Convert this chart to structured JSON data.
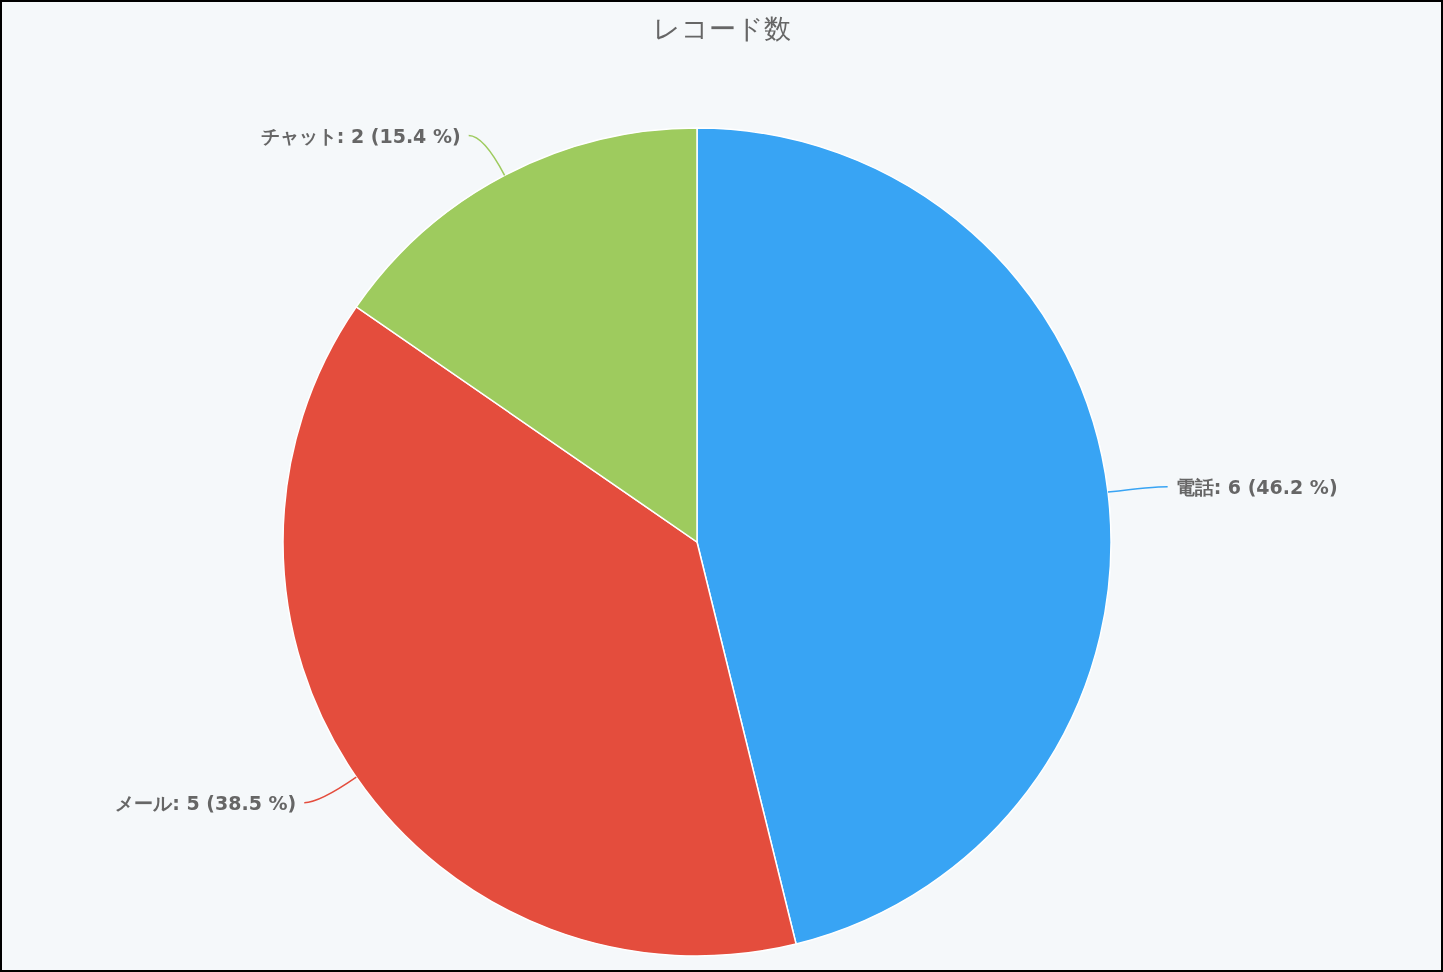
{
  "chart_data": {
    "type": "pie",
    "title": "レコード数",
    "categories": [
      "電話",
      "メール",
      "チャット"
    ],
    "values": [
      6,
      5,
      2
    ],
    "colors": [
      "#38a4f4",
      "#e44d3d",
      "#9ecb5e"
    ],
    "value_labels": [
      "6 (46.2 %)",
      "5 (38.5 %)",
      "2 (15.4 %)"
    ],
    "legend": false
  }
}
